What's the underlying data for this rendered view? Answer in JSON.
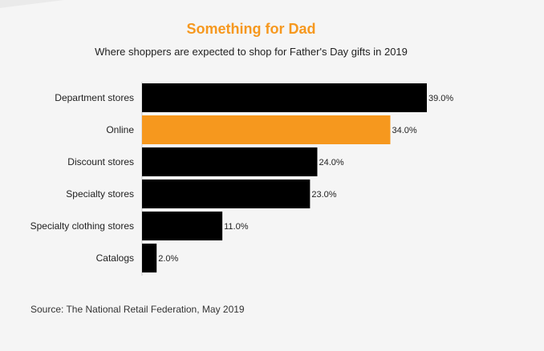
{
  "chart_data": {
    "type": "bar",
    "orientation": "horizontal",
    "title": "Something for Dad",
    "subtitle": "Where shoppers are expected to shop for Father's Day gifts in 2019",
    "categories": [
      "Department stores",
      "Online",
      "Discount stores",
      "Specialty stores",
      "Specialty clothing stores",
      "Catalogs"
    ],
    "values": [
      39.0,
      34.0,
      24.0,
      23.0,
      11.0,
      2.0
    ],
    "value_labels": [
      "39.0%",
      "34.0%",
      "24.0%",
      "23.0%",
      "11.0%",
      "2.0%"
    ],
    "highlight_index": 1,
    "xlabel": "",
    "ylabel": "",
    "xlim": [
      0,
      39
    ],
    "grid": false,
    "legend": "none",
    "colors": {
      "bar": "#000000",
      "highlight": "#f6981e",
      "title": "#f6981e"
    }
  },
  "footer": {
    "source": "Source: The National Retail Federation, May 2019"
  }
}
